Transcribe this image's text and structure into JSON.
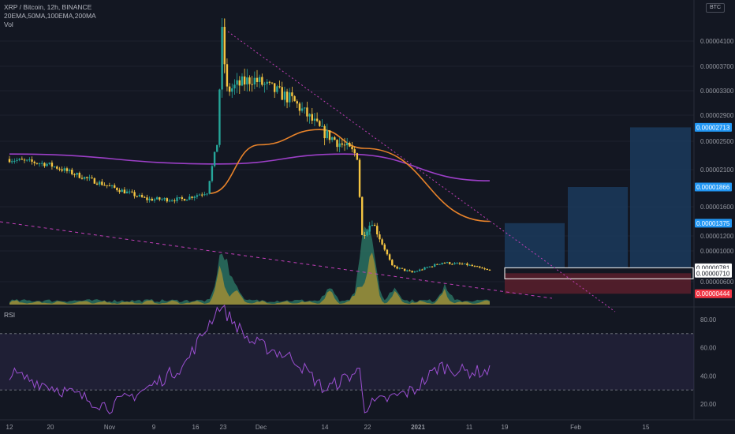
{
  "header": {
    "symbol": "XRP / Bitcoin, 12h, BINANCE",
    "indicators": "20EMA,50MA,100EMA,200MA",
    "volume_label": "Vol",
    "currency": "BTC"
  },
  "rsi": {
    "label": "RSI",
    "ticks": [
      "80.00",
      "60.00",
      "40.00",
      "20.00"
    ],
    "tick_values": [
      80,
      60,
      40,
      20
    ],
    "upper_band": 70,
    "lower_band": 30,
    "range": [
      10,
      92
    ]
  },
  "colors": {
    "background": "#131722",
    "up": "#26a69a",
    "down": "#f5c542",
    "ma_orange": "#e8832a",
    "ma_purple": "#9c3fc7",
    "rsi_line": "#9b4fd1",
    "target_fill": "#1b3a5c",
    "stop_fill": "#5a1f2b",
    "trendline": "#c23fb8",
    "label_blue": "#2196f3",
    "label_red": "#f23645"
  },
  "price_axis": {
    "ticks": [
      "0.00004100",
      "0.00003700",
      "0.00003300",
      "0.00002900",
      "0.00002500",
      "0.00002100",
      "0.00001600",
      "0.00001200",
      "0.00001000",
      "0.00000600"
    ],
    "tick_values": [
      4.1e-05,
      3.7e-05,
      3.3e-05,
      2.9e-05,
      2.5e-05,
      2.1e-05,
      1.6e-05,
      1.2e-05,
      1e-05,
      6e-06
    ],
    "labels": [
      {
        "text": "0.00002713",
        "value": 2.713e-05,
        "style": "blue"
      },
      {
        "text": "0.00001866",
        "value": 1.866e-05,
        "style": "blue"
      },
      {
        "text": "0.00001375",
        "value": 1.375e-05,
        "style": "blue"
      },
      {
        "text": "0.00000781",
        "value": 7.81e-06,
        "style": "white"
      },
      {
        "text": "0.00000710",
        "value": 7.1e-06,
        "style": "white"
      },
      {
        "text": "0.00000444",
        "value": 4.44e-06,
        "style": "red"
      }
    ]
  },
  "time_axis": {
    "labels": [
      "12",
      "20",
      "Nov",
      "9",
      "16",
      "23",
      "Dec",
      "14",
      "22",
      "2021",
      "11",
      "19",
      "Feb",
      "15"
    ]
  },
  "chart_data": {
    "type": "candlestick",
    "symbol": "XRP/BTC",
    "interval": "12h",
    "price_range_approx": [
      3.2e-06,
      4.5e-05
    ],
    "price_path_keypoints": [
      {
        "date": "Oct 12",
        "price": 2.25e-05
      },
      {
        "date": "Oct 20",
        "price": 2.18e-05
      },
      {
        "date": "Oct 28",
        "price": 1.98e-05
      },
      {
        "date": "Nov 9",
        "price": 1.7e-05
      },
      {
        "date": "Nov 16",
        "price": 1.7e-05
      },
      {
        "date": "Nov 21",
        "price": 1.8e-05
      },
      {
        "date": "Nov 23",
        "price": 2.48e-05
      },
      {
        "date": "Nov 24",
        "price": 4.2e-05
      },
      {
        "date": "Nov 25",
        "price": 3.3e-05
      },
      {
        "date": "Nov 30",
        "price": 3.5e-05
      },
      {
        "date": "Dec 8",
        "price": 3.15e-05
      },
      {
        "date": "Dec 14",
        "price": 2.65e-05
      },
      {
        "date": "Dec 18",
        "price": 2.45e-05
      },
      {
        "date": "Dec 21",
        "price": 2.3e-05
      },
      {
        "date": "Dec 22",
        "price": 1.2e-05
      },
      {
        "date": "Dec 24",
        "price": 1.4e-05
      },
      {
        "date": "Dec 28",
        "price": 8e-06
      },
      {
        "date": "Jan 1",
        "price": 7.2e-06
      },
      {
        "date": "Jan 7",
        "price": 8.5e-06
      },
      {
        "date": "Jan 12",
        "price": 8.2e-06
      },
      {
        "date": "Jan 16",
        "price": 7.5e-06
      }
    ],
    "ma_orange_keypoints": [
      {
        "date": "Nov 21",
        "price": 1.78e-05
      },
      {
        "date": "Dec 1",
        "price": 2.45e-05
      },
      {
        "date": "Dec 13",
        "price": 2.68e-05
      },
      {
        "date": "Dec 22",
        "price": 2.4e-05
      },
      {
        "date": "Jan 16",
        "price": 1.4e-05
      }
    ],
    "ma_purple_keypoints": [
      {
        "date": "Oct 12",
        "price": 2.32e-05
      },
      {
        "date": "Nov 23",
        "price": 2.18e-05
      },
      {
        "date": "Dec 18",
        "price": 2.32e-05
      },
      {
        "date": "Jan 16",
        "price": 1.95e-05
      }
    ],
    "projection": {
      "entry": 7.81e-06,
      "entry_alt": 7.1e-06,
      "stop": 4.44e-06,
      "targets": [
        1.375e-05,
        1.866e-05,
        2.713e-05
      ]
    },
    "rsi_keypoints": [
      {
        "date": "Oct 12",
        "value": 42
      },
      {
        "date": "Oct 20",
        "value": 33
      },
      {
        "date": "Nov 1",
        "value": 18
      },
      {
        "date": "Nov 9",
        "value": 32
      },
      {
        "date": "Nov 16",
        "value": 48
      },
      {
        "date": "Nov 23",
        "value": 90
      },
      {
        "date": "Nov 29",
        "value": 65
      },
      {
        "date": "Dec 8",
        "value": 52
      },
      {
        "date": "Dec 14",
        "value": 30
      },
      {
        "date": "Dec 21",
        "value": 44
      },
      {
        "date": "Dec 22",
        "value": 18
      },
      {
        "date": "Jan 1",
        "value": 30
      },
      {
        "date": "Jan 6",
        "value": 47
      },
      {
        "date": "Jan 11",
        "value": 43
      },
      {
        "date": "Jan 16",
        "value": 43
      }
    ],
    "legend": {
      "symbol": "XRP / Bitcoin, 12h, BINANCE",
      "indicators": "20EMA,50MA,100EMA,200MA",
      "volume": "Vol",
      "rsi": "RSI"
    }
  }
}
